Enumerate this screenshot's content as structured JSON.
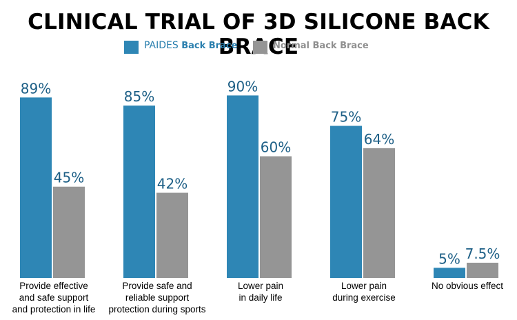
{
  "chart_data": {
    "type": "bar",
    "title": "CLINICAL TRIAL OF 3D SILICONE BACK BRACE",
    "xlabel": "",
    "ylabel": "",
    "ylim": [
      0,
      100
    ],
    "grid": false,
    "legend_position": "top",
    "categories": [
      [
        "Provide effective",
        "and safe support",
        "and protection in life"
      ],
      [
        "Provide safe and",
        "reliable support",
        "protection during sports"
      ],
      [
        "Lower pain",
        "in daily life"
      ],
      [
        "Lower pain",
        "during exercise"
      ],
      [
        "No obvious effect"
      ]
    ],
    "series": [
      {
        "name_prefix": "PAIDES",
        "name_suffix": "Back Brace",
        "color": "#2e86b5",
        "values": [
          89,
          85,
          90,
          75,
          5
        ],
        "labels": [
          "89%",
          "85%",
          "90%",
          "75%",
          "5%"
        ]
      },
      {
        "name_prefix": "",
        "name_suffix": "Normal Back Brace",
        "color": "#959595",
        "values": [
          45,
          42,
          60,
          64,
          7.5
        ],
        "labels": [
          "45%",
          "42%",
          "60%",
          "64%",
          "7.5%"
        ]
      }
    ],
    "label_color": "#1d5f86",
    "legend_paides_color": "#2a7fae",
    "legend_normal_color": "#8f8f8f"
  }
}
